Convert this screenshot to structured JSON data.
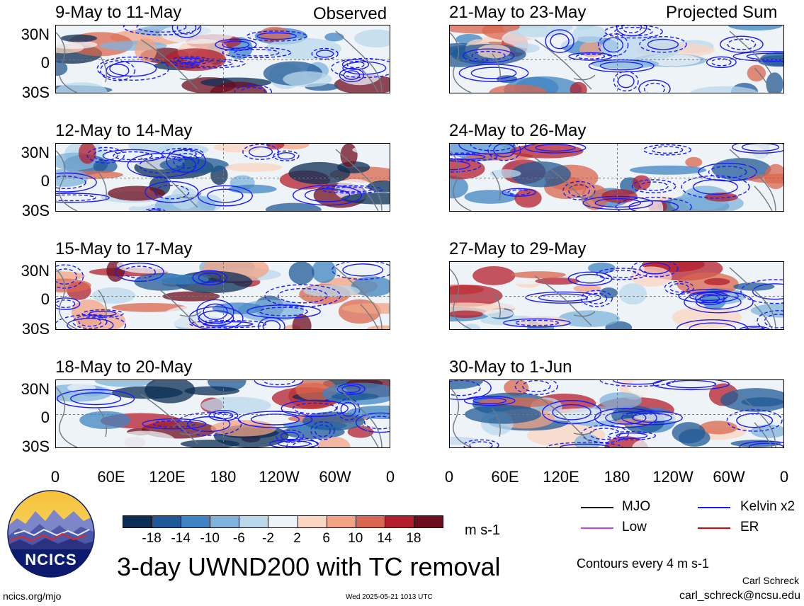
{
  "labels": {
    "observed": "Observed",
    "projected": "Projected Sum",
    "lat_ticks": [
      "30N",
      "0",
      "30S"
    ],
    "lon_ticks": [
      "0",
      "60E",
      "120E",
      "180",
      "120W",
      "60W",
      "0"
    ]
  },
  "panels_left": [
    {
      "title": "9-May to 11-May"
    },
    {
      "title": "12-May to 14-May"
    },
    {
      "title": "15-May to 17-May"
    },
    {
      "title": "18-May to 20-May"
    }
  ],
  "panels_right": [
    {
      "title": "21-May to 23-May"
    },
    {
      "title": "24-May to 26-May"
    },
    {
      "title": "27-May to 29-May"
    },
    {
      "title": "30-May to 1-Jun"
    }
  ],
  "colorbar": {
    "labels": [
      "-18",
      "-14",
      "-10",
      "-6",
      "-2",
      "2",
      "6",
      "10",
      "14",
      "18"
    ],
    "unit": "m s-1",
    "colors": [
      "#0b2d55",
      "#1f5a96",
      "#3f84c2",
      "#7fb3db",
      "#b9d8ec",
      "#eef3f8",
      "#fbd6c2",
      "#f1a383",
      "#d9674f",
      "#b31d2c",
      "#6e0c1e"
    ]
  },
  "legend": {
    "items": [
      {
        "label": "MJO",
        "color": "#000000"
      },
      {
        "label": "Kelvin x2",
        "color": "#1a1aff"
      },
      {
        "label": "Low",
        "color": "#c040ff"
      },
      {
        "label": "ER",
        "color": "#e00000"
      }
    ],
    "contours_note": "Contours every 4 m s-1"
  },
  "logo_text": "NCICS",
  "main_title": "3-day UWND200 with TC removal",
  "footer": {
    "url": "ncics.org/mjo",
    "timestamp": "Wed 2025-05-21 1013 UTC",
    "author": "Carl Schreck",
    "email": "carl_schreck@ncsu.edu"
  }
}
